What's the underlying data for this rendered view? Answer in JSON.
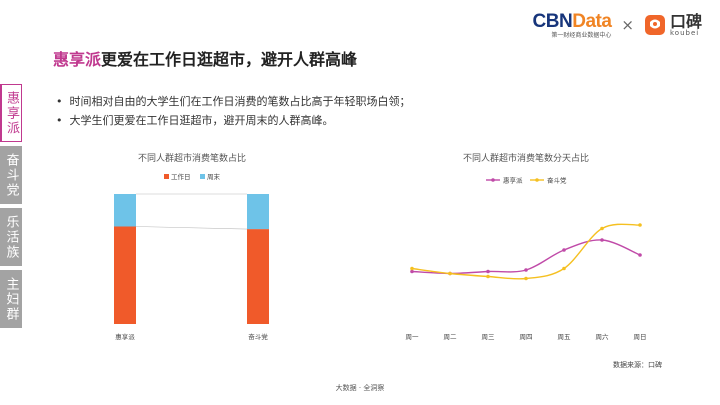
{
  "header": {
    "brand_cbn_part1": "CBN",
    "brand_cbn_part2": "Data",
    "brand_cbn_sub": "第一财经商业数据中心",
    "times": "×",
    "brand_koubei_cn": "口碑",
    "brand_koubei_en": "koubei",
    "brand_colors": {
      "cbn_blue": "#17357b",
      "cbn_orange": "#f08424",
      "koubei_orange": "#f0662a"
    }
  },
  "title": {
    "accent": "惠享派",
    "rest": "更爱在工作日逛超市，避开人群高峰"
  },
  "bullets": [
    "时间相对自由的大学生们在工作日消费的笔数占比高于年轻职场白领；",
    "大学生们更爱在工作日逛超市，避开周末的人群高峰。"
  ],
  "sidebar": {
    "tabs": [
      {
        "label": "惠享派",
        "active": true
      },
      {
        "label": "奋斗党",
        "active": false
      },
      {
        "label": "乐活族",
        "active": false
      },
      {
        "label": "主妇群",
        "active": false
      }
    ],
    "active_color": "#c0398f"
  },
  "footer": "大数据 · 全洞察",
  "source": "数据来源：口碑",
  "chart_data": [
    {
      "type": "bar",
      "stacked": true,
      "percent": true,
      "title": "不同人群超市消费笔数占比",
      "categories": [
        "惠享派",
        "奋斗党"
      ],
      "series": [
        {
          "name": "工作日",
          "values": [
            0.75,
            0.73
          ],
          "color": "#f05a2a"
        },
        {
          "name": "周末",
          "values": [
            0.25,
            0.27
          ],
          "color": "#6ec3e8"
        }
      ],
      "ylim": [
        0,
        1
      ],
      "legend": "top",
      "grid": false
    },
    {
      "type": "line",
      "title": "不同人群超市消费笔数分天占比",
      "x": [
        "周一",
        "周二",
        "周三",
        "周四",
        "周五",
        "周六",
        "周日"
      ],
      "series": [
        {
          "name": "惠享派",
          "values": [
            0.127,
            0.123,
            0.127,
            0.13,
            0.17,
            0.19,
            0.16
          ],
          "color": "#c04aa8"
        },
        {
          "name": "奋斗党",
          "values": [
            0.133,
            0.123,
            0.117,
            0.113,
            0.133,
            0.213,
            0.22
          ],
          "color": "#f5c021"
        }
      ],
      "ylim": [
        0.05,
        0.25
      ],
      "legend": "top",
      "grid": false
    }
  ]
}
